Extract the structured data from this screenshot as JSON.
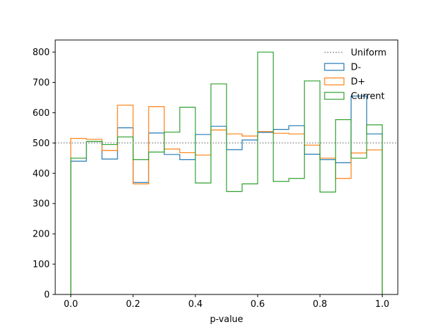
{
  "chart_data": {
    "type": "step-histogram",
    "title": "",
    "xlabel": "p-value",
    "ylabel": "",
    "xlim": [
      -0.05,
      1.05
    ],
    "ylim": [
      0,
      840
    ],
    "xticks": [
      0.0,
      0.2,
      0.4,
      0.6,
      0.8,
      1.0
    ],
    "xtick_labels": [
      "0.0",
      "0.2",
      "0.4",
      "0.6",
      "0.8",
      "1.0"
    ],
    "yticks": [
      0,
      100,
      200,
      300,
      400,
      500,
      600,
      700,
      800
    ],
    "ytick_labels": [
      "0",
      "100",
      "200",
      "300",
      "400",
      "500",
      "600",
      "700",
      "800"
    ],
    "grid": false,
    "legend_position": "top-right",
    "bin_edges": [
      0.0,
      0.05,
      0.1,
      0.15,
      0.2,
      0.25,
      0.3,
      0.35,
      0.4,
      0.45,
      0.5,
      0.55,
      0.6,
      0.65,
      0.7,
      0.75,
      0.8,
      0.85,
      0.9,
      0.95,
      1.0
    ],
    "reference_line": {
      "name": "Uniform",
      "y": 500,
      "color": "#7f7f7f",
      "style": "dotted"
    },
    "series": [
      {
        "name": "D-",
        "color": "#1f77b4",
        "values": [
          440,
          505,
          447,
          550,
          370,
          533,
          462,
          445,
          528,
          555,
          478,
          510,
          535,
          545,
          557,
          463,
          445,
          435,
          655,
          530
        ]
      },
      {
        "name": "D+",
        "color": "#ff7f0e",
        "values": [
          515,
          512,
          475,
          625,
          365,
          620,
          480,
          468,
          460,
          543,
          530,
          523,
          538,
          532,
          530,
          493,
          450,
          383,
          467,
          477
        ]
      },
      {
        "name": "Current",
        "color": "#2ca02c",
        "values": [
          450,
          505,
          495,
          520,
          445,
          470,
          536,
          618,
          368,
          695,
          340,
          365,
          800,
          373,
          383,
          705,
          338,
          577,
          450,
          560
        ]
      }
    ]
  }
}
